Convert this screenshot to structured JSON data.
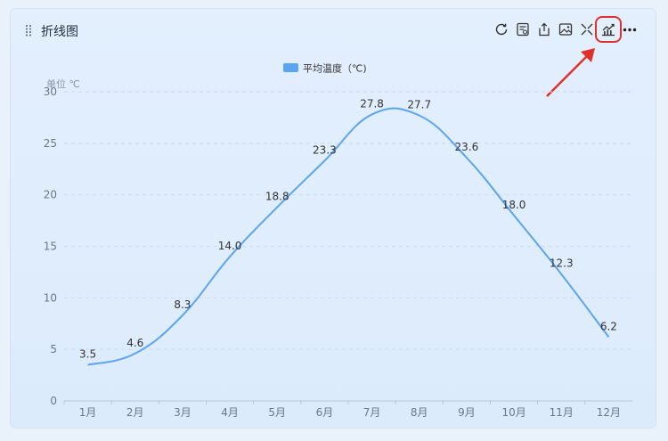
{
  "widget": {
    "title": "折线图"
  },
  "toolbar": {
    "icons": [
      "refresh-icon",
      "data-view-icon",
      "export-icon",
      "save-image-icon",
      "fullscreen-icon",
      "trend-chart-icon",
      "more-icon"
    ],
    "highlight_color": "#e0302a"
  },
  "chart_data": {
    "type": "line",
    "legend": {
      "label": "平均温度（℃)",
      "placement": "top-center",
      "color": "#5aa5f2"
    },
    "ylabel": "单位 ℃",
    "categories": [
      "1月",
      "2月",
      "3月",
      "4月",
      "5月",
      "6月",
      "7月",
      "8月",
      "9月",
      "10月",
      "11月",
      "12月"
    ],
    "values": [
      3.5,
      4.6,
      8.3,
      14.0,
      18.8,
      23.3,
      27.8,
      27.7,
      23.6,
      18.0,
      12.3,
      6.2
    ],
    "value_labels": [
      "3.5",
      "4.6",
      "8.3",
      "14.0",
      "18.8",
      "23.3",
      "27.8",
      "27.7",
      "23.6",
      "18.0",
      "12.3",
      "6.2"
    ],
    "yticks": [
      "0",
      "5",
      "10",
      "15",
      "20",
      "25",
      "30"
    ],
    "ylim": [
      0,
      30
    ],
    "grid": true,
    "line_color": "#5aa5f2",
    "smooth": true
  }
}
